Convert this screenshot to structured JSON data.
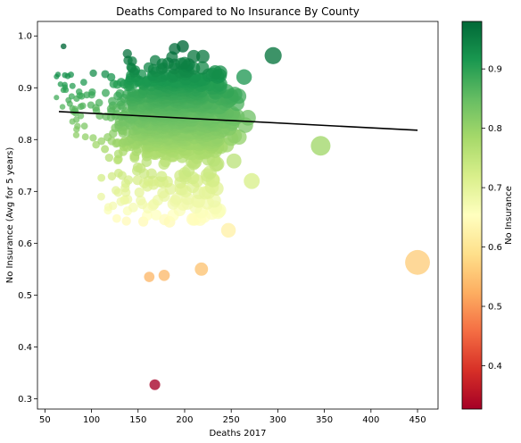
{
  "chart_data": {
    "type": "scatter",
    "title": "Deaths Compared to No Insurance By County",
    "xlabel": "Deaths 2017",
    "ylabel": "No Insurance (Avg for 5 years)",
    "xlim": [
      42,
      472
    ],
    "ylim": [
      0.28,
      1.028
    ],
    "xticks": [
      50,
      100,
      150,
      200,
      250,
      300,
      350,
      400,
      450
    ],
    "yticks": [
      0.3,
      0.4,
      0.5,
      0.6,
      0.7,
      0.8,
      0.9,
      1.0
    ],
    "colormap": "RdYlGn",
    "colorbar": {
      "label": "No Insurance",
      "range": [
        0.327,
        0.98
      ],
      "ticks": [
        0.4,
        0.5,
        0.6,
        0.7,
        0.8,
        0.9
      ]
    },
    "marker_size_encodes": "Deaths 2017",
    "regression_line": {
      "color": "#000000",
      "points": [
        [
          65,
          0.854
        ],
        [
          450,
          0.818
        ]
      ]
    },
    "notable_points": [
      {
        "x": 168,
        "y": 0.327
      },
      {
        "x": 450,
        "y": 0.563
      },
      {
        "x": 346,
        "y": 0.788
      },
      {
        "x": 247,
        "y": 0.625
      },
      {
        "x": 70,
        "y": 0.98
      },
      {
        "x": 198,
        "y": 0.98
      },
      {
        "x": 295,
        "y": 0.962
      },
      {
        "x": 272,
        "y": 0.72
      },
      {
        "x": 218,
        "y": 0.55
      },
      {
        "x": 178,
        "y": 0.538
      },
      {
        "x": 162,
        "y": 0.535
      }
    ],
    "bulk_cloud": {
      "x_range": [
        62,
        300
      ],
      "y_range": [
        0.64,
        0.975
      ],
      "approx_count": 1500,
      "densest_region": {
        "x": [
          120,
          240
        ],
        "y": [
          0.78,
          0.92
        ]
      }
    },
    "grid": false
  }
}
